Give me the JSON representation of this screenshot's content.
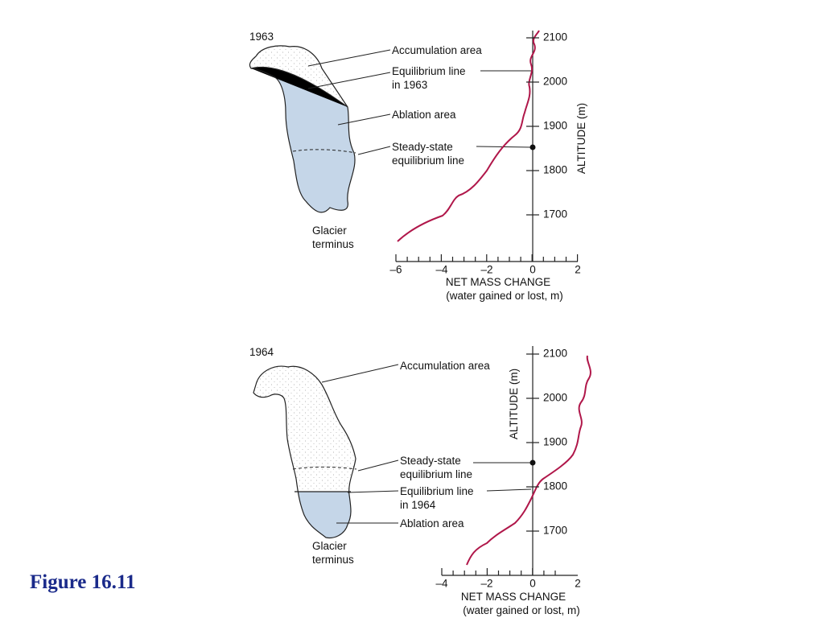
{
  "figure_label": "Figure 16.11",
  "panels": [
    {
      "year": "1963",
      "callouts": {
        "accumulation": [
          "Accumulation area"
        ],
        "equilibrium": [
          "Equilibrium line",
          "in 1963"
        ],
        "ablation": [
          "Ablation area"
        ],
        "steady_state": [
          "Steady-state",
          "equilibrium line"
        ],
        "terminus": [
          "Glacier",
          "terminus"
        ]
      },
      "y_axis": {
        "title": "ALTITUDE (m)",
        "ticks": [
          "2100",
          "2000",
          "1900",
          "1800",
          "1700"
        ]
      },
      "x_axis": {
        "title": "NET MASS CHANGE",
        "subtitle": "(water gained or lost, m)",
        "ticks": [
          "–6",
          "–4",
          "–2",
          "0",
          "2"
        ]
      }
    },
    {
      "year": "1964",
      "callouts": {
        "accumulation": [
          "Accumulation area"
        ],
        "steady_state": [
          "Steady-state",
          "equilibrium line"
        ],
        "equilibrium": [
          "Equilibrium line",
          "in 1964"
        ],
        "ablation": [
          "Ablation area"
        ],
        "terminus": [
          "Glacier",
          "terminus"
        ]
      },
      "y_axis": {
        "title": "ALTITUDE (m)",
        "ticks": [
          "2100",
          "2000",
          "1900",
          "1800",
          "1700"
        ]
      },
      "x_axis": {
        "title": "NET MASS CHANGE",
        "subtitle": "(water gained or lost, m)",
        "ticks": [
          "–4",
          "–2",
          "0",
          "2"
        ]
      }
    }
  ]
}
